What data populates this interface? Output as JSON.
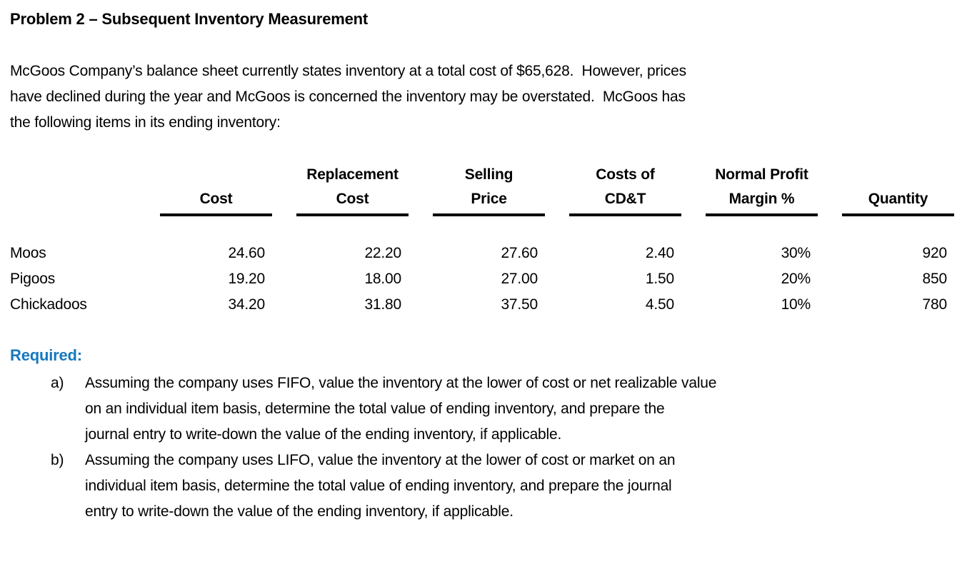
{
  "page": {
    "title": "Problem 2 – Subsequent Inventory Measurement",
    "intro": "McGoos Company’s balance sheet currently states inventory at a total cost of $65,628.  However, prices\nhave declined during the year and McGoos is concerned the inventory may be overstated.  McGoos has\nthe following items in its ending inventory:",
    "required": {
      "label": "Required:",
      "items": [
        {
          "marker": "a)",
          "text": "Assuming the company uses FIFO, value the inventory at the lower of cost or net realizable value\non an individual item basis, determine the total value of ending inventory, and prepare the\njournal entry to write-down the value of the ending inventory, if applicable."
        },
        {
          "marker": "b)",
          "text": "Assuming the company uses LIFO, value the inventory at the lower of cost or market on an\nindividual item basis, determine the total value of ending inventory, and prepare the journal\nentry to write-down the value of the ending inventory, if applicable."
        }
      ]
    }
  },
  "inventory_table": {
    "columns": [
      {
        "line1": "",
        "line2": "Cost"
      },
      {
        "line1": "Replacement",
        "line2": "Cost"
      },
      {
        "line1": "Selling",
        "line2": "Price"
      },
      {
        "line1": "Costs of",
        "line2": "CD&T"
      },
      {
        "line1": "Normal Profit",
        "line2": "Margin %"
      },
      {
        "line1": "",
        "line2": "Quantity"
      }
    ],
    "rows": [
      {
        "item": "Moos",
        "cost": "24.60",
        "replacement_cost": "22.20",
        "selling_price": "27.60",
        "costs_of_cdt": "2.40",
        "normal_profit_margin_pct": "30%",
        "quantity": "920"
      },
      {
        "item": "Pigoos",
        "cost": "19.20",
        "replacement_cost": "18.00",
        "selling_price": "27.00",
        "costs_of_cdt": "1.50",
        "normal_profit_margin_pct": "20%",
        "quantity": "850"
      },
      {
        "item": "Chickadoos",
        "cost": "34.20",
        "replacement_cost": "31.80",
        "selling_price": "37.50",
        "costs_of_cdt": "4.50",
        "normal_profit_margin_pct": "10%",
        "quantity": "780"
      }
    ]
  },
  "colors": {
    "required_heading": "#1778be",
    "body_text": "#000000",
    "background": "#ffffff"
  }
}
